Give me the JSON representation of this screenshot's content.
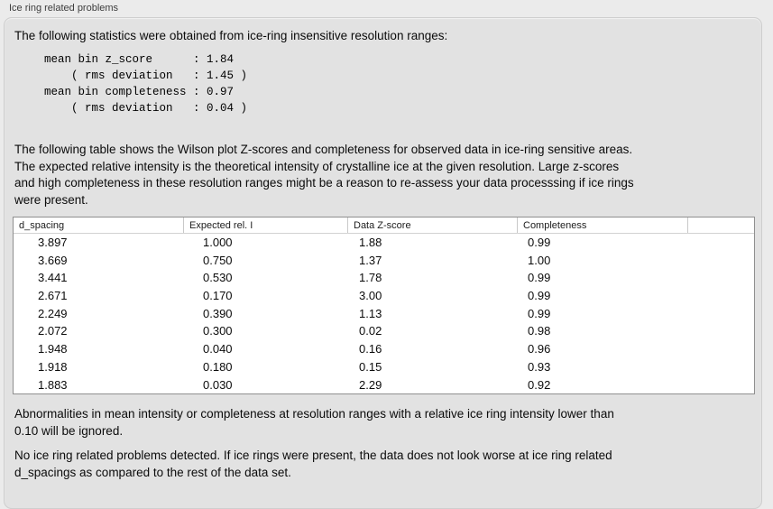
{
  "panel": {
    "title": "Ice ring related problems"
  },
  "stats": {
    "intro": "The following statistics were obtained from ice-ring insensitive resolution ranges:",
    "block": "mean bin z_score      : 1.84\n    ( rms deviation   : 1.45 )\nmean bin completeness : 0.97\n    ( rms deviation   : 0.04 )",
    "mean_bin_z_score": "1.84",
    "z_score_rms_deviation": "1.45",
    "mean_bin_completeness": "0.97",
    "completeness_rms_deviation": "0.04"
  },
  "table_intro": "The following table shows the Wilson plot Z-scores and completeness for observed data in ice-ring sensitive areas.\nThe expected relative intensity is the theoretical intensity of crystalline ice at the given resolution. Large z-scores\nand high completeness in these resolution ranges might be a reason to re-assess your data processsing if ice rings\nwere present.",
  "table": {
    "columns": [
      "d_spacing",
      "Expected rel. I",
      "Data Z-score",
      "Completeness"
    ],
    "rows": [
      [
        "3.897",
        "1.000",
        "1.88",
        "0.99"
      ],
      [
        "3.669",
        "0.750",
        "1.37",
        "1.00"
      ],
      [
        "3.441",
        "0.530",
        "1.78",
        "0.99"
      ],
      [
        "2.671",
        "0.170",
        "3.00",
        "0.99"
      ],
      [
        "2.249",
        "0.390",
        "1.13",
        "0.99"
      ],
      [
        "2.072",
        "0.300",
        "0.02",
        "0.98"
      ],
      [
        "1.948",
        "0.040",
        "0.16",
        "0.96"
      ],
      [
        "1.918",
        "0.180",
        "0.15",
        "0.93"
      ],
      [
        "1.883",
        "0.030",
        "2.29",
        "0.92"
      ]
    ]
  },
  "notes": {
    "ignore_note": "Abnormalities in mean intensity or completeness at resolution ranges with a relative ice ring intensity lower than\n0.10 will be ignored.",
    "conclusion": "No ice ring related problems detected. If ice rings were present, the data does not look worse at ice ring related\nd_spacings as compared to the rest of the data set."
  },
  "colors": {
    "panel_background": "#e2e2e2",
    "outer_background": "#ebebeb",
    "table_background": "#ffffff",
    "table_border": "#8f8f8f"
  }
}
